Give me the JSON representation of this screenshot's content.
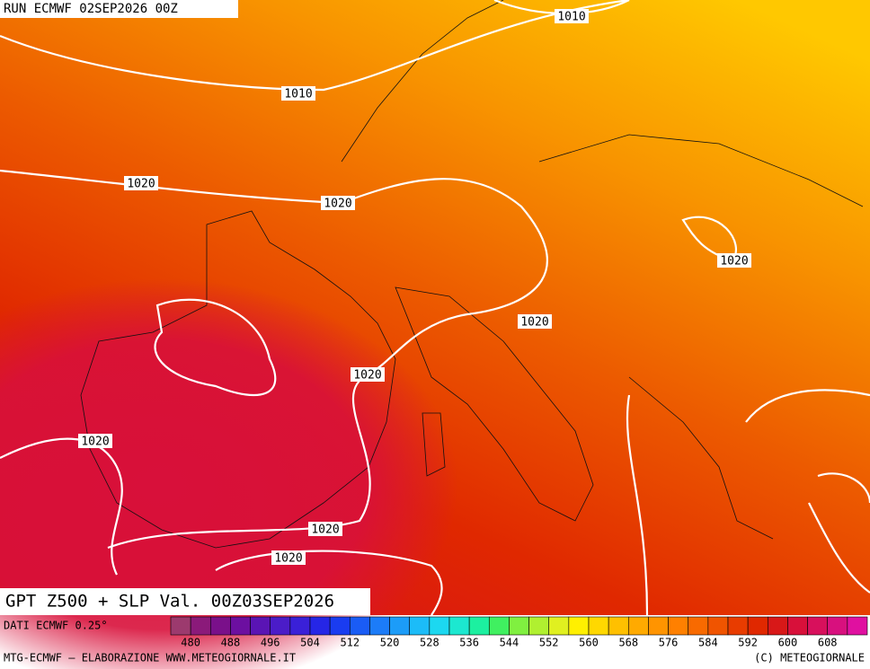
{
  "header": {
    "run": "RUN ECMWF 02SEP2026 00Z"
  },
  "map": {
    "title": "GPT Z500 + SLP Val. 00Z03SEP2026",
    "isobar_labels": [
      1010,
      1010,
      1020,
      1020,
      1020,
      1020,
      1020,
      1020,
      1020,
      1020
    ]
  },
  "legend": {
    "source": "DATI ECMWF 0.25°",
    "colors": [
      "#9c3a6e",
      "#8b1a7a",
      "#7a108a",
      "#6c0fa0",
      "#5a14b4",
      "#4b1cc8",
      "#3a20d8",
      "#2626e6",
      "#1a3cf0",
      "#1a5cf5",
      "#1c7cf8",
      "#1c9cf8",
      "#1cbcf8",
      "#1cd8f0",
      "#1ce8d0",
      "#1cf0a0",
      "#40f060",
      "#80f040",
      "#b0f030",
      "#e0f020",
      "#fff000",
      "#ffd800",
      "#ffc000",
      "#ffaa00",
      "#ff9400",
      "#ff8000",
      "#f86a00",
      "#f05400",
      "#e83c00",
      "#e02800",
      "#d81818",
      "#d8103a",
      "#d8105c",
      "#d8107e",
      "#e010a0"
    ],
    "labels": [
      480,
      488,
      496,
      504,
      512,
      520,
      528,
      536,
      544,
      552,
      560,
      568,
      576,
      584,
      592,
      600,
      608
    ]
  },
  "footer": {
    "credit": "MTG-ECMWF – ELABORAZIONE WWW.METEOGIORNALE.IT",
    "copyright": "(C) METEOGIORNALE"
  }
}
